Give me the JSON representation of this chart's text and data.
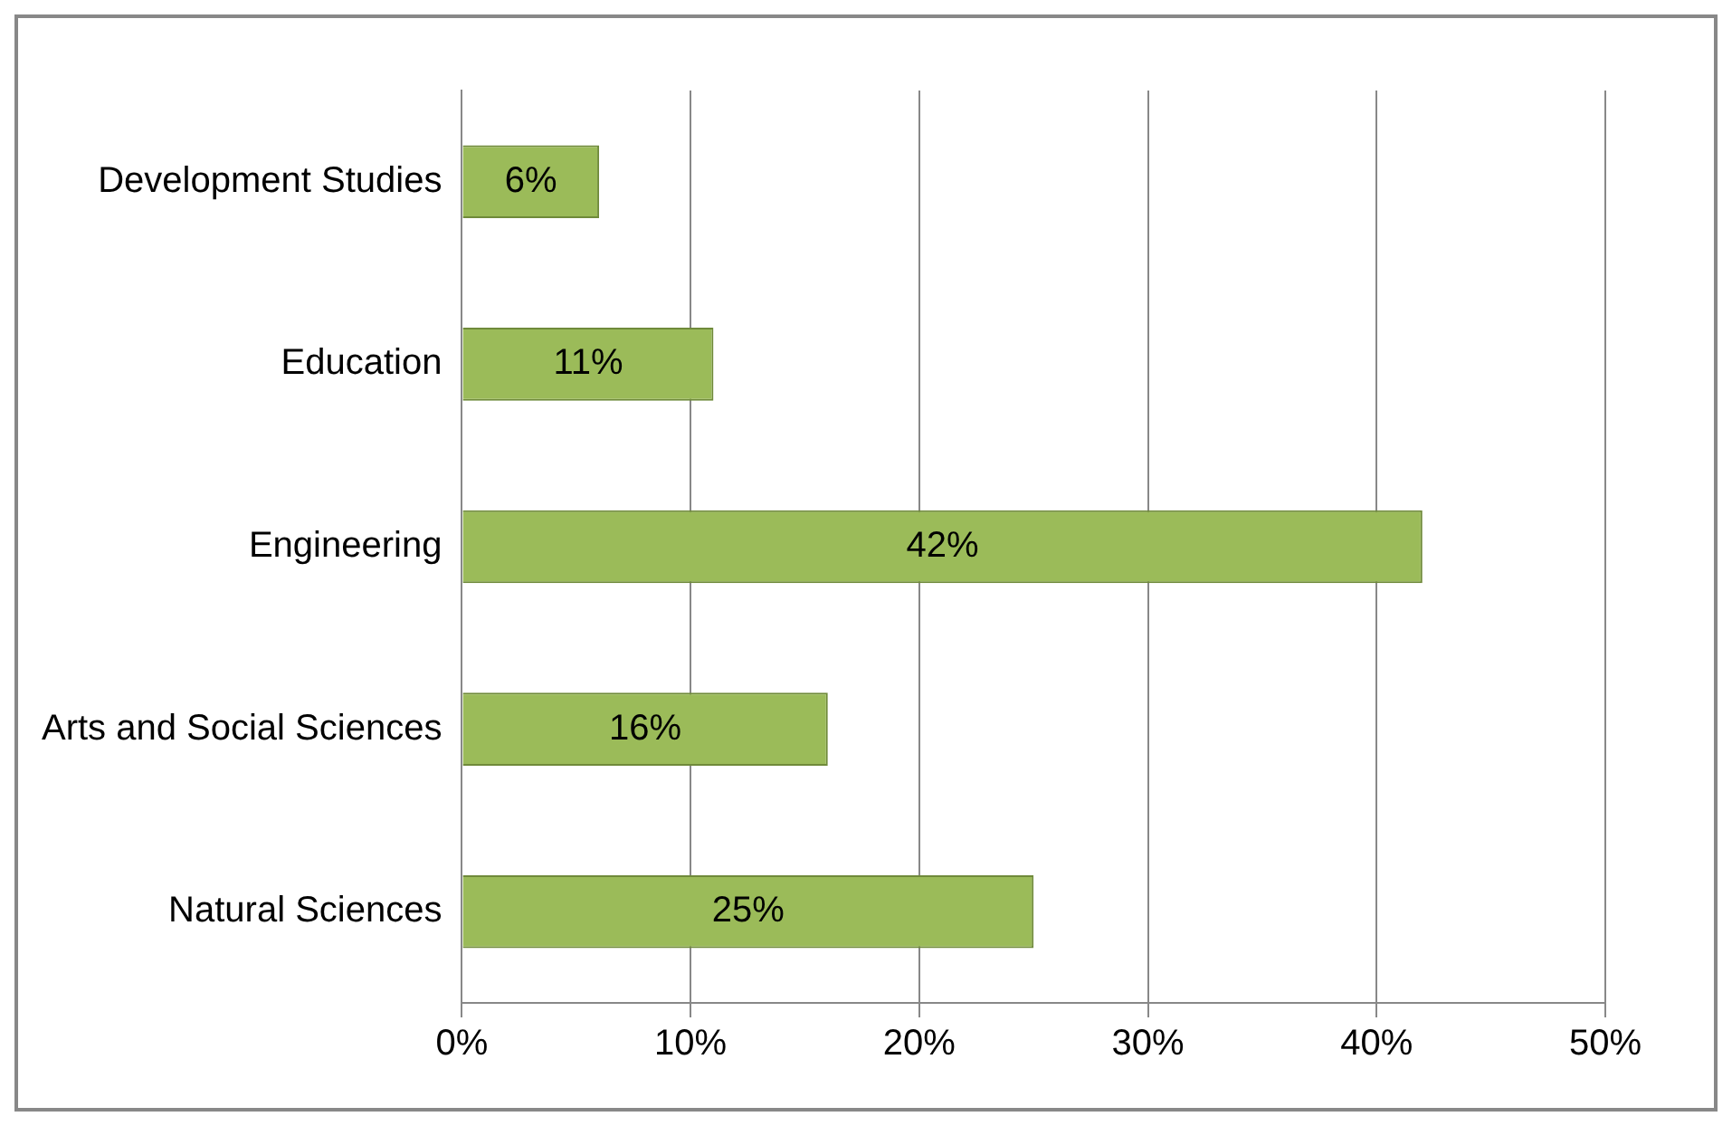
{
  "chart_data": {
    "type": "bar",
    "orientation": "horizontal",
    "categories": [
      "Development Studies",
      "Education",
      "Engineering",
      "Arts and Social Sciences",
      "Natural Sciences"
    ],
    "values": [
      6,
      11,
      42,
      16,
      25
    ],
    "color": "#9bbb59",
    "value_labels": [
      "6%",
      "11%",
      "42%",
      "16%",
      "25%"
    ],
    "xlim": [
      0,
      50
    ],
    "xticks": [
      {
        "value": 0,
        "label": "0%"
      },
      {
        "value": 10,
        "label": "10%"
      },
      {
        "value": 20,
        "label": "20%"
      },
      {
        "value": 30,
        "label": "30%"
      },
      {
        "value": 40,
        "label": "40%"
      },
      {
        "value": 50,
        "label": "50%"
      }
    ],
    "grid": "x",
    "legend": false
  }
}
